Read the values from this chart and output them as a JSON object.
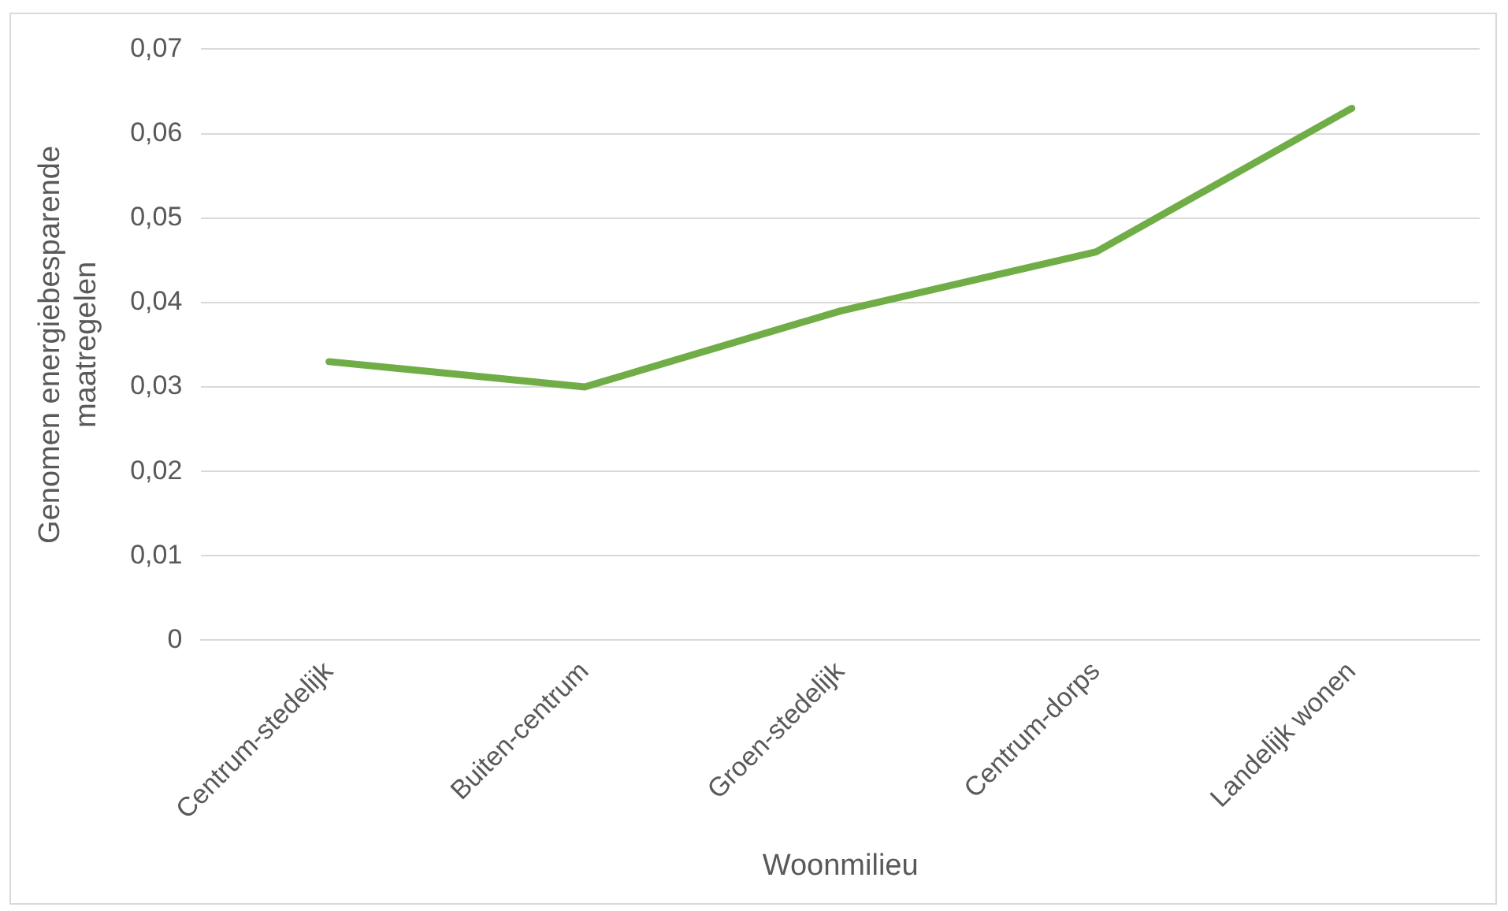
{
  "chart_data": {
    "type": "line",
    "xlabel": "Woonmilieu",
    "ylabel": "Genomen energiebesparende maatregelen",
    "categories": [
      "Centrum-stedelijk",
      "Buiten-centrum",
      "Groen-stedelijk",
      "Centrum-dorps",
      "Landelijk wonen"
    ],
    "series": [
      {
        "color": "#70ad47",
        "values": [
          0.033,
          0.03,
          0.039,
          0.046,
          0.063
        ]
      }
    ],
    "ylim": [
      0,
      0.07
    ],
    "yticks": [
      {
        "value": 0,
        "label": "0"
      },
      {
        "value": 0.01,
        "label": "0,01"
      },
      {
        "value": 0.02,
        "label": "0,02"
      },
      {
        "value": 0.03,
        "label": "0,03"
      },
      {
        "value": 0.04,
        "label": "0,04"
      },
      {
        "value": 0.05,
        "label": "0,05"
      },
      {
        "value": 0.06,
        "label": "0,06"
      },
      {
        "value": 0.07,
        "label": "0,07"
      }
    ],
    "grid": "y",
    "legend": false,
    "marker": "none",
    "line_style": "solid"
  }
}
